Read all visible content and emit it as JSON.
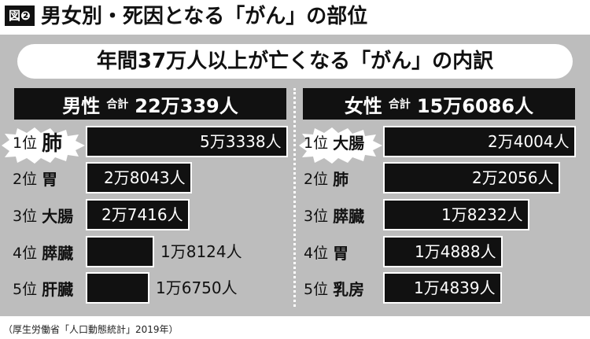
{
  "figure": {
    "badge": "図❷",
    "title": "男女別・死因となる「がん」の部位",
    "subtitle": "年間37万人以上が亡くなる「がん」の内訳",
    "source": "（厚生労働省「人口動態統計」2019年）"
  },
  "chart_data": [
    {
      "type": "bar",
      "orientation": "horizontal",
      "title": "男性",
      "total_label": "合計",
      "total": "22万339人",
      "categories": [
        "肺",
        "胃",
        "大腸",
        "膵臓",
        "肝臓"
      ],
      "ranks": [
        "1位",
        "2位",
        "3位",
        "4位",
        "5位"
      ],
      "values": [
        53338,
        28043,
        27416,
        18124,
        16750
      ],
      "value_labels": [
        "5万3338人",
        "2万8043人",
        "2万7416人",
        "1万8124人",
        "1万6750人"
      ]
    },
    {
      "type": "bar",
      "orientation": "horizontal",
      "title": "女性",
      "total_label": "合計",
      "total": "15万6086人",
      "categories": [
        "大腸",
        "肺",
        "膵臓",
        "胃",
        "乳房"
      ],
      "ranks": [
        "1位",
        "2位",
        "3位",
        "4位",
        "5位"
      ],
      "values": [
        24004,
        22056,
        18232,
        14888,
        14839
      ],
      "value_labels": [
        "2万4004人",
        "2万2056人",
        "1万8232人",
        "1万4888人",
        "1万4839人"
      ]
    }
  ]
}
